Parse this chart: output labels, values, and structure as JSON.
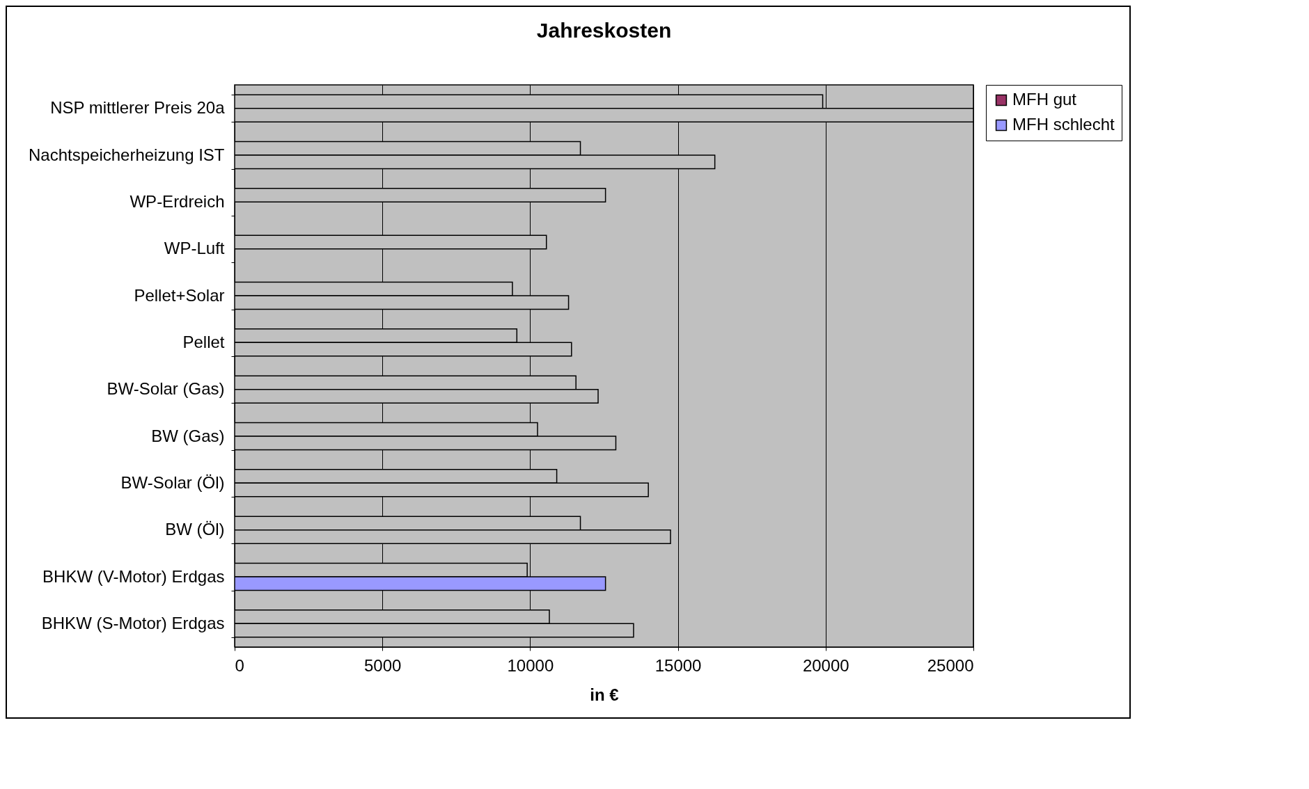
{
  "chart_data": {
    "type": "bar",
    "orientation": "horizontal",
    "title": "Jahreskosten",
    "xlabel": "in €",
    "categories": [
      "NSP mittlerer Preis 20a",
      "Nachtspeicherheizung IST",
      "WP-Erdreich",
      "WP-Luft",
      "Pellet+Solar",
      "Pellet",
      "BW-Solar (Gas)",
      "BW (Gas)",
      "BW-Solar (Öl)",
      "BW (Öl)",
      "BHKW (V-Motor) Erdgas",
      "BHKW (S-Motor) Erdgas"
    ],
    "series": [
      {
        "name": "MFH gut",
        "color": "#993366",
        "colors": [
          "#c0c0c0",
          "#c0c0c0",
          "#c0c0c0",
          "#c0c0c0",
          "#c0c0c0",
          "#c0c0c0",
          "#c0c0c0",
          "#c0c0c0",
          "#c0c0c0",
          "#c0c0c0",
          "#c0c0c0",
          "#c0c0c0"
        ],
        "values": [
          19900,
          11700,
          12550,
          10550,
          9400,
          9550,
          11550,
          10250,
          10900,
          11700,
          9900,
          10650
        ]
      },
      {
        "name": "MFH schlecht",
        "color": "#9999ff",
        "colors": [
          "#c0c0c0",
          "#c0c0c0",
          null,
          null,
          "#c0c0c0",
          "#c0c0c0",
          "#c0c0c0",
          "#c0c0c0",
          "#c0c0c0",
          "#c0c0c0",
          "#9999ff",
          "#c0c0c0"
        ],
        "values": [
          25000,
          16250,
          null,
          null,
          11300,
          11400,
          12300,
          12900,
          14000,
          14750,
          12550,
          13500
        ]
      }
    ],
    "xlim": [
      0,
      25000
    ],
    "xticks": [
      0,
      5000,
      10000,
      15000,
      20000,
      25000
    ],
    "grid": "x",
    "legend": "right"
  }
}
